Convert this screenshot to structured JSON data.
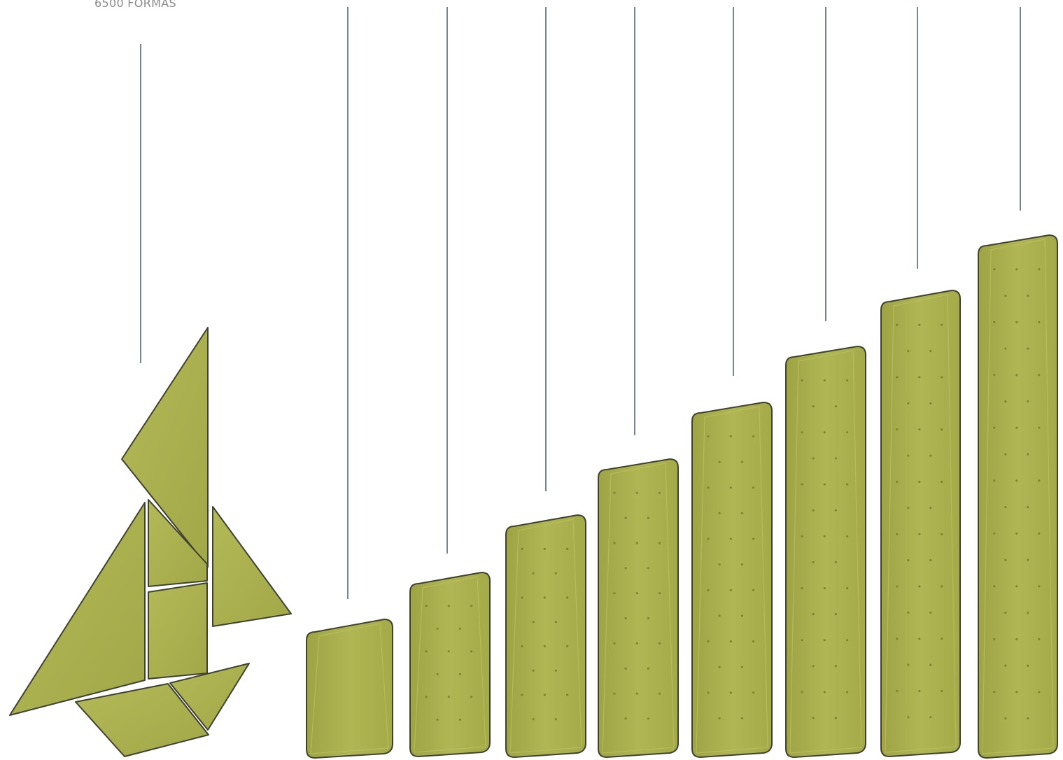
{
  "caption": "6500 FORMAS",
  "colors": {
    "panel": "#aab04a",
    "panel_light": "#bcc264",
    "panel_dark": "#8e9436",
    "edge": "#3f4230",
    "line": "#1f3347",
    "dot": "#7f8534"
  },
  "icons": {
    "tangram": "tangram-boat-icon",
    "panels": "acoustic-panel-icon"
  }
}
